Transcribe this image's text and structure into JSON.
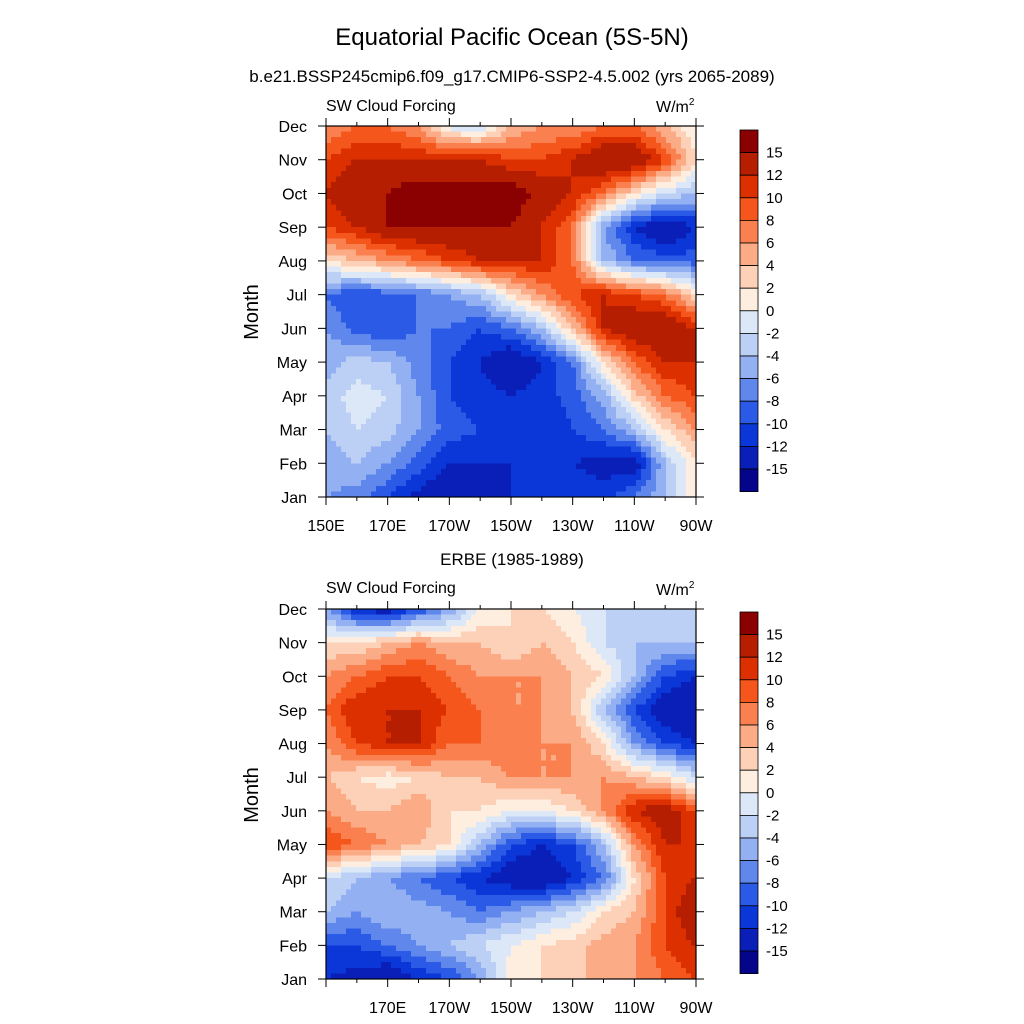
{
  "figure": {
    "title": "Equatorial Pacific Ocean (5S-5N)"
  },
  "colorbar": {
    "labels": [
      "15",
      "12",
      "10",
      "8",
      "6",
      "4",
      "2",
      "0",
      "-2",
      "-4",
      "-6",
      "-8",
      "-10",
      "-12",
      "-15"
    ],
    "colors": [
      "#8b0000",
      "#b51e00",
      "#dc3000",
      "#f5561c",
      "#fb8050",
      "#fbab85",
      "#fdd1b8",
      "#fdeee0",
      "#dce8f8",
      "#bcd0f5",
      "#93b0f2",
      "#6088ec",
      "#2a5ae6",
      "#0c37d8",
      "#0a1fb8",
      "#05058c"
    ]
  },
  "chart_data": [
    {
      "type": "heatmap",
      "title": "b.e21.BSSP245cmip6.f09_g17.CMIP6-SSP2-4.5.002 (yrs 2065-2089)",
      "left_string": "SW Cloud Forcing",
      "units": "W/m²",
      "units_base": "W/m",
      "units_sup": "2",
      "ylabel": "Month",
      "y_ticks": [
        "Jan",
        "Feb",
        "Mar",
        "Apr",
        "May",
        "Jun",
        "Jul",
        "Aug",
        "Sep",
        "Oct",
        "Nov",
        "Dec"
      ],
      "x_ticks": [
        "150E",
        "170E",
        "170W",
        "150W",
        "130W",
        "110W",
        "90W"
      ],
      "x_range": [
        150,
        270
      ],
      "y_range": [
        1,
        12
      ],
      "x": [
        150,
        160,
        170,
        180,
        190,
        200,
        210,
        220,
        230,
        240,
        250,
        260,
        270
      ],
      "y": [
        1,
        2,
        3,
        4,
        5,
        6,
        7,
        8,
        9,
        10,
        11,
        12
      ],
      "values": [
        [
          -6,
          -7,
          -10,
          -13,
          -15,
          -15,
          -12,
          -11,
          -10,
          -11,
          -8,
          -4,
          2
        ],
        [
          -5,
          -4,
          -6,
          -9,
          -12,
          -12,
          -12,
          -12,
          -12,
          -13,
          -14,
          -4,
          2
        ],
        [
          -4,
          -2,
          -3,
          -6,
          -9,
          -10,
          -11,
          -12,
          -10,
          -8,
          -4,
          2,
          6
        ],
        [
          -3,
          -1,
          -2,
          -6,
          -10,
          -11,
          -12,
          -11,
          -9,
          -5,
          3,
          8,
          10
        ],
        [
          -5,
          -3,
          -4,
          -7,
          -10,
          -12,
          -15,
          -12,
          -8,
          2,
          8,
          12,
          12
        ],
        [
          -6,
          -9,
          -10,
          -8,
          -8,
          -10,
          -8,
          -4,
          4,
          12,
          15,
          15,
          12
        ],
        [
          -8,
          -10,
          -9,
          -8,
          -6,
          -4,
          2,
          6,
          10,
          12,
          10,
          8,
          2
        ],
        [
          2,
          4,
          6,
          8,
          10,
          12,
          12,
          12,
          8,
          -4,
          -8,
          -9,
          -9
        ],
        [
          10,
          12,
          15,
          15,
          15,
          15,
          15,
          12,
          8,
          -6,
          -12,
          -15,
          -12
        ],
        [
          12,
          15,
          15,
          17,
          17,
          17,
          17,
          14,
          12,
          8,
          2,
          -2,
          -4
        ],
        [
          10,
          12,
          12,
          12,
          12,
          12,
          10,
          10,
          12,
          15,
          15,
          10,
          2
        ],
        [
          6,
          8,
          8,
          6,
          -1,
          -2,
          4,
          6,
          6,
          8,
          8,
          4,
          0
        ]
      ]
    },
    {
      "type": "heatmap",
      "title": "ERBE (1985-1989)",
      "left_string": "SW Cloud Forcing",
      "units": "W/m²",
      "units_base": "W/m",
      "units_sup": "2",
      "ylabel": "Month",
      "y_ticks": [
        "Jan",
        "Feb",
        "Mar",
        "Apr",
        "May",
        "Jun",
        "Jul",
        "Aug",
        "Sep",
        "Oct",
        "Nov",
        "Dec"
      ],
      "x_ticks": [
        "170E",
        "170W",
        "150W",
        "130W",
        "110W",
        "90W"
      ],
      "x_range": [
        150,
        270
      ],
      "y_range": [
        1,
        12
      ],
      "x": [
        150,
        160,
        170,
        180,
        190,
        200,
        210,
        220,
        230,
        240,
        250,
        260,
        270
      ],
      "y": [
        1,
        2,
        3,
        4,
        5,
        6,
        7,
        8,
        9,
        10,
        11,
        12
      ],
      "values": [
        [
          -12,
          -13,
          -15,
          -12,
          -10,
          -6,
          1,
          2,
          4,
          4,
          6,
          8,
          10
        ],
        [
          -10,
          -10,
          -8,
          -6,
          -4,
          -2,
          0,
          2,
          3,
          5,
          6,
          10,
          12
        ],
        [
          -4,
          -6,
          -4,
          -5,
          -6,
          -8,
          -6,
          -4,
          -2,
          2,
          4,
          10,
          15
        ],
        [
          -2,
          -4,
          -6,
          -8,
          -10,
          -12,
          -14,
          -15,
          -12,
          -8,
          2,
          10,
          12
        ],
        [
          10,
          8,
          6,
          4,
          2,
          -4,
          -10,
          -12,
          -10,
          -4,
          6,
          12,
          12
        ],
        [
          6,
          4,
          4,
          6,
          2,
          2,
          0,
          0,
          2,
          6,
          12,
          14,
          10
        ],
        [
          4,
          2,
          1,
          2,
          4,
          4,
          6,
          6,
          6,
          6,
          4,
          2,
          -2
        ],
        [
          6,
          10,
          12,
          12,
          8,
          8,
          8,
          6,
          6,
          2,
          -6,
          -10,
          -12
        ],
        [
          8,
          12,
          12,
          12,
          10,
          8,
          6,
          6,
          4,
          -4,
          -10,
          -14,
          -15
        ],
        [
          6,
          8,
          10,
          10,
          8,
          6,
          6,
          6,
          4,
          2,
          -4,
          -10,
          -12
        ],
        [
          2,
          2,
          4,
          6,
          4,
          4,
          2,
          4,
          2,
          -2,
          -4,
          -4,
          -4
        ],
        [
          -6,
          -12,
          -14,
          -10,
          -6,
          0,
          2,
          2,
          0,
          -2,
          -4,
          -4,
          -2
        ]
      ]
    }
  ]
}
